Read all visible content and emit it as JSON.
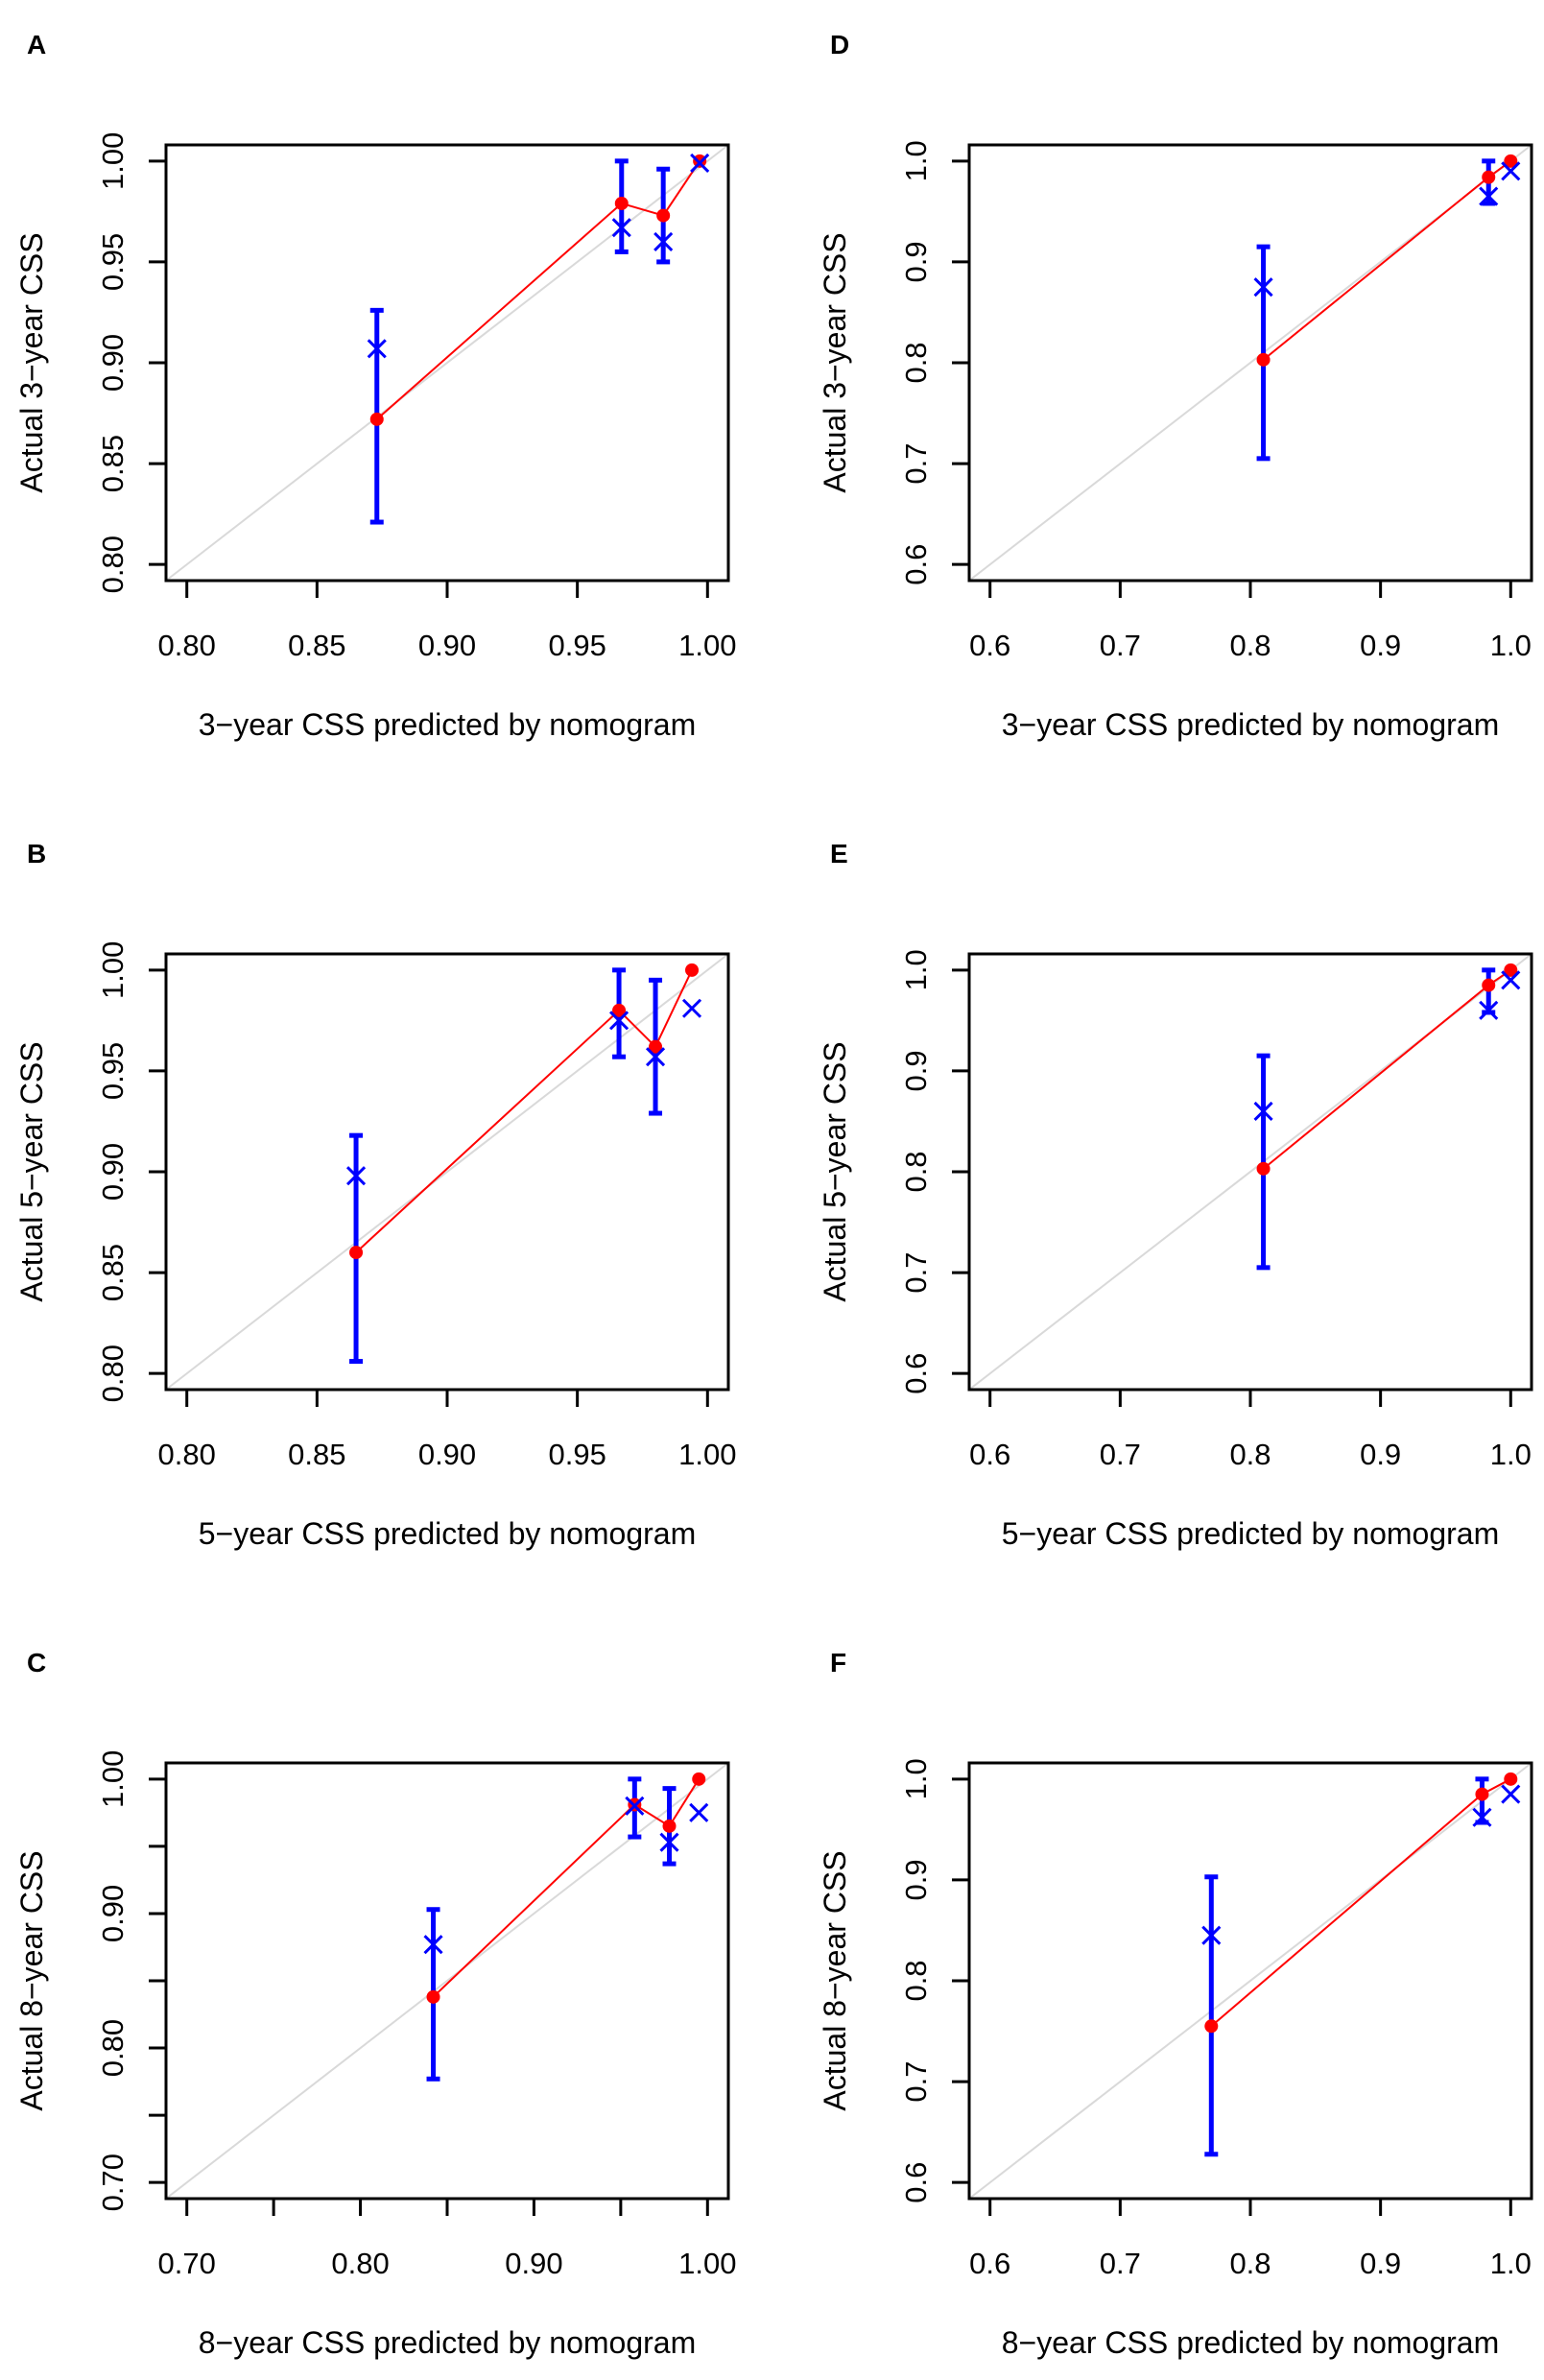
{
  "chart_data": [
    {
      "panel": "A",
      "type": "scatter",
      "xlabel": "3−year CSS predicted by nomogram",
      "ylabel": "Actual 3−year CSS",
      "xlim": [
        0.8,
        1.0
      ],
      "ylim": [
        0.8,
        1.0
      ],
      "xticks": [
        0.8,
        0.85,
        0.9,
        0.95,
        1.0
      ],
      "xticklabels": [
        "0.80",
        "0.85",
        "0.90",
        "0.95",
        "1.00"
      ],
      "yticks": [
        0.8,
        0.85,
        0.9,
        0.95,
        1.0
      ],
      "yticklabels": [
        "0.80",
        "0.85",
        "0.90",
        "0.95",
        "1.00"
      ],
      "predicted": [
        0.873,
        0.967,
        0.983,
        0.997
      ],
      "observed": [
        0.872,
        0.979,
        0.973,
        1.0
      ],
      "km": [
        0.907,
        0.967,
        0.96,
        0.999
      ],
      "ci_low": [
        0.821,
        0.955,
        0.95,
        null
      ],
      "ci_high": [
        0.926,
        1.0,
        0.996,
        null
      ]
    },
    {
      "panel": "B",
      "type": "scatter",
      "xlabel": "5−year CSS predicted by nomogram",
      "ylabel": "Actual 5−year CSS",
      "xlim": [
        0.8,
        1.0
      ],
      "ylim": [
        0.8,
        1.0
      ],
      "xticks": [
        0.8,
        0.85,
        0.9,
        0.95,
        1.0
      ],
      "xticklabels": [
        "0.80",
        "0.85",
        "0.90",
        "0.95",
        "1.00"
      ],
      "yticks": [
        0.8,
        0.85,
        0.9,
        0.95,
        1.0
      ],
      "yticklabels": [
        "0.80",
        "0.85",
        "0.90",
        "0.95",
        "1.00"
      ],
      "predicted": [
        0.865,
        0.966,
        0.98,
        0.994
      ],
      "observed": [
        0.86,
        0.98,
        0.962,
        1.0
      ],
      "km": [
        0.898,
        0.975,
        0.957,
        0.981
      ],
      "ci_low": [
        0.806,
        0.957,
        0.929,
        null
      ],
      "ci_high": [
        0.918,
        1.0,
        0.995,
        null
      ]
    },
    {
      "panel": "C",
      "type": "scatter",
      "xlabel": "8−year CSS predicted by nomogram",
      "ylabel": "Actual 8−year CSS",
      "xlim": [
        0.7,
        1.0
      ],
      "ylim": [
        0.7,
        1.0
      ],
      "xticks": [
        0.7,
        0.75,
        0.8,
        0.85,
        0.9,
        0.95,
        1.0
      ],
      "xticklabels": [
        "0.70",
        "",
        "0.80",
        "",
        "0.90",
        "",
        "1.00"
      ],
      "yticks": [
        0.7,
        0.75,
        0.8,
        0.85,
        0.9,
        0.95,
        1.0
      ],
      "yticklabels": [
        "0.70",
        "",
        "0.80",
        "",
        "0.90",
        "",
        "1.00"
      ],
      "predicted": [
        0.842,
        0.958,
        0.978,
        0.995
      ],
      "observed": [
        0.838,
        0.981,
        0.965,
        1.0
      ],
      "km": [
        0.877,
        0.98,
        0.953,
        0.975
      ],
      "ci_low": [
        0.777,
        0.957,
        0.937,
        null
      ],
      "ci_high": [
        0.903,
        1.0,
        0.993,
        null
      ]
    },
    {
      "panel": "D",
      "type": "scatter",
      "xlabel": "3−year CSS predicted by nomogram",
      "ylabel": "Actual 3−year CSS",
      "xlim": [
        0.6,
        1.0
      ],
      "ylim": [
        0.6,
        1.0
      ],
      "xticks": [
        0.6,
        0.7,
        0.8,
        0.9,
        1.0
      ],
      "xticklabels": [
        "0.6",
        "0.7",
        "0.8",
        "0.9",
        "1.0"
      ],
      "yticks": [
        0.6,
        0.7,
        0.8,
        0.9,
        1.0
      ],
      "yticklabels": [
        "0.6",
        "0.7",
        "0.8",
        "0.9",
        "1.0"
      ],
      "predicted": [
        0.81,
        0.983,
        1.0
      ],
      "observed": [
        0.803,
        0.984,
        1.0
      ],
      "km": [
        0.875,
        0.965,
        0.99
      ],
      "ci_low": [
        0.705,
        0.958,
        null
      ],
      "ci_high": [
        0.915,
        1.0,
        null
      ]
    },
    {
      "panel": "E",
      "type": "scatter",
      "xlabel": "5−year CSS predicted by nomogram",
      "ylabel": "Actual 5−year CSS",
      "xlim": [
        0.6,
        1.0
      ],
      "ylim": [
        0.6,
        1.0
      ],
      "xticks": [
        0.6,
        0.7,
        0.8,
        0.9,
        1.0
      ],
      "xticklabels": [
        "0.6",
        "0.7",
        "0.8",
        "0.9",
        "1.0"
      ],
      "yticks": [
        0.6,
        0.7,
        0.8,
        0.9,
        1.0
      ],
      "yticklabels": [
        "0.6",
        "0.7",
        "0.8",
        "0.9",
        "1.0"
      ],
      "predicted": [
        0.81,
        0.983,
        1.0
      ],
      "observed": [
        0.803,
        0.985,
        1.0
      ],
      "km": [
        0.86,
        0.96,
        0.99
      ],
      "ci_low": [
        0.705,
        0.958,
        null
      ],
      "ci_high": [
        0.915,
        1.0,
        null
      ]
    },
    {
      "panel": "F",
      "type": "scatter",
      "xlabel": "8−year CSS predicted by nomogram",
      "ylabel": "Actual 8−year CSS",
      "xlim": [
        0.6,
        1.0
      ],
      "ylim": [
        0.6,
        1.0
      ],
      "xticks": [
        0.6,
        0.7,
        0.8,
        0.9,
        1.0
      ],
      "xticklabels": [
        "0.6",
        "0.7",
        "0.8",
        "0.9",
        "1.0"
      ],
      "yticks": [
        0.6,
        0.7,
        0.8,
        0.9,
        1.0
      ],
      "yticklabels": [
        "0.6",
        "0.7",
        "0.8",
        "0.9",
        "1.0"
      ],
      "predicted": [
        0.77,
        0.978,
        1.0
      ],
      "observed": [
        0.755,
        0.985,
        1.0
      ],
      "km": [
        0.845,
        0.962,
        0.985
      ],
      "ci_low": [
        0.628,
        0.957,
        null
      ],
      "ci_high": [
        0.903,
        1.0,
        null
      ]
    }
  ],
  "colors": {
    "observed": "#ff0000",
    "km": "#0000ff",
    "ideal": "#d9d9d9",
    "axis": "#000000"
  }
}
